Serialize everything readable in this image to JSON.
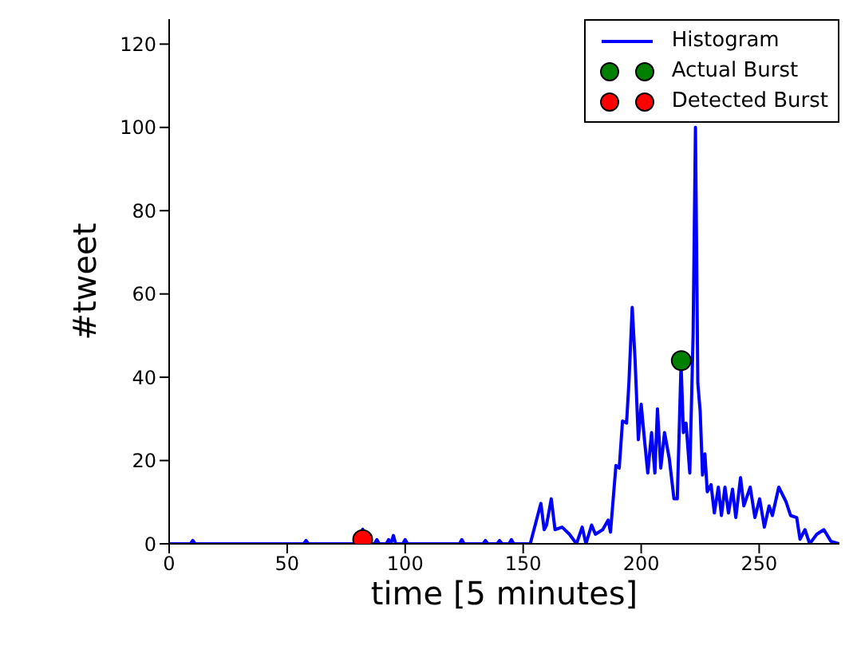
{
  "chart_data": {
    "type": "line",
    "xlabel": "time [5 minutes]",
    "ylabel": "#tweet",
    "xlim": [
      0,
      284
    ],
    "ylim": [
      0,
      126
    ],
    "xticks": [
      0,
      50,
      100,
      150,
      200,
      250
    ],
    "yticks": [
      0,
      20,
      40,
      60,
      80,
      100,
      120
    ],
    "legend": "top right",
    "line_style": "solid",
    "series": [
      {
        "name": "Histogram",
        "color": "#0000ff",
        "x": [
          0,
          9,
          10,
          11,
          57,
          58,
          59,
          81,
          82,
          83,
          87,
          88,
          89,
          92,
          93,
          94,
          95,
          96,
          99,
          100,
          101,
          123,
          124,
          125,
          133,
          134,
          135,
          139,
          140,
          141,
          144,
          145,
          146,
          153,
          157.5,
          158.9,
          159.9,
          161.9,
          163.5,
          166.5,
          169.6,
          172.6,
          175,
          176.6,
          179,
          180.6,
          183.7,
          186,
          187,
          189.3,
          190.7,
          192.1,
          193.8,
          194.8,
          196.2,
          197.4,
          198.8,
          200,
          201.4,
          202.8,
          204.4,
          205.8,
          206.9,
          208.3,
          209.9,
          211.9,
          213.9,
          215.3,
          216.9,
          217.9,
          219,
          220.6,
          222,
          223,
          224,
          225,
          226,
          227,
          228,
          229.6,
          231,
          232.7,
          234,
          235.5,
          237,
          238.7,
          240.1,
          242.1,
          243.5,
          246.2,
          248.2,
          250.2,
          252.2,
          254.2,
          255.6,
          258.3,
          261.3,
          263.3,
          265.9,
          267.3,
          269.4,
          271.4,
          274.4,
          277.4,
          280.4,
          284
        ],
        "values": [
          0,
          0,
          0.8,
          0,
          0,
          0.8,
          0,
          0,
          3.5,
          0,
          0,
          1,
          0,
          0,
          1,
          0,
          2,
          0,
          0,
          1,
          0,
          0,
          1,
          0,
          0,
          0.8,
          0,
          0,
          0.8,
          0,
          0,
          1,
          0,
          0,
          9.7,
          3.4,
          4.5,
          10.8,
          3.4,
          4,
          2.3,
          0,
          4,
          0,
          4.5,
          2.3,
          3.4,
          5.7,
          2.8,
          18.8,
          18.2,
          29.5,
          29,
          38.6,
          56.8,
          44.3,
          25,
          33.5,
          25,
          17,
          26.7,
          17,
          32.4,
          18.2,
          26.7,
          20.5,
          10.8,
          10.8,
          43.2,
          26.7,
          29,
          17,
          50,
          100,
          38.6,
          31.8,
          16.5,
          21.6,
          12.5,
          14.2,
          7.4,
          13.6,
          6.8,
          13.6,
          7.4,
          13.1,
          6.3,
          15.9,
          9.1,
          13.6,
          6.3,
          10.8,
          4,
          9.1,
          6.8,
          13.6,
          10.2,
          6.8,
          6.3,
          1.1,
          3.4,
          0,
          2.3,
          3.4,
          0.6,
          0
        ]
      },
      {
        "name": "Actual Burst",
        "type": "scatter",
        "color": "#008000",
        "marker": "circle",
        "x": [
          217
        ],
        "values": [
          44
        ]
      },
      {
        "name": "Detected Burst",
        "type": "scatter",
        "color": "#ff0000",
        "marker": "circle",
        "x": [
          82
        ],
        "values": [
          1
        ]
      }
    ]
  }
}
